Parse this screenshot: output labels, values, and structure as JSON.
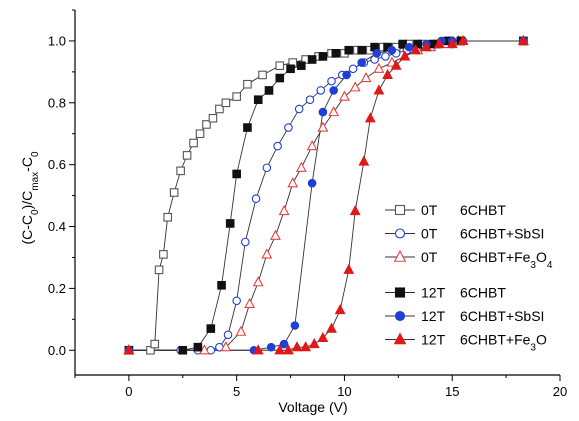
{
  "chart_data": {
    "type": "scatter",
    "title": "",
    "xlabel": "Voltage (V)",
    "ylabel_parts": [
      "(C-C",
      "0",
      ")/C",
      "max",
      "-C",
      "0"
    ],
    "xlim": [
      -2.5,
      20
    ],
    "ylim": [
      -0.08,
      1.1
    ],
    "xticks": [
      0,
      5,
      10,
      15,
      20
    ],
    "yticks": [
      0.0,
      0.2,
      0.4,
      0.6,
      0.8,
      1.0
    ],
    "xtick_labels": [
      "0",
      "5",
      "10",
      "15",
      "20"
    ],
    "ytick_labels": [
      "0.0",
      "0.2",
      "0.4",
      "0.6",
      "0.8",
      "1.0"
    ],
    "grid": false,
    "legend_position": "right",
    "series": [
      {
        "field": "0T",
        "sample_parts": [
          "6CHBT"
        ],
        "marker": "square",
        "filled": false,
        "color": "#555555",
        "x": [
          0,
          1.0,
          1.2,
          1.4,
          1.6,
          1.8,
          2.1,
          2.4,
          2.7,
          3.0,
          3.3,
          3.6,
          3.9,
          4.2,
          4.5,
          5.0,
          5.5,
          6.2,
          7.0,
          7.6,
          8.2,
          8.8,
          9.4,
          10.0,
          10.6,
          11.2,
          11.8,
          12.4,
          13.0,
          13.6,
          14.3,
          14.9,
          15.4,
          18.3
        ],
        "y": [
          0.0,
          0.0,
          0.02,
          0.26,
          0.31,
          0.43,
          0.51,
          0.58,
          0.63,
          0.67,
          0.7,
          0.73,
          0.75,
          0.78,
          0.8,
          0.82,
          0.86,
          0.89,
          0.92,
          0.93,
          0.94,
          0.95,
          0.96,
          0.96,
          0.97,
          0.97,
          0.98,
          0.98,
          0.99,
          0.99,
          0.99,
          1.0,
          1.0,
          1.0
        ]
      },
      {
        "field": "0T",
        "sample_parts": [
          "6CHBT+SbSI"
        ],
        "marker": "circle",
        "filled": false,
        "color": "#1f3fd6",
        "x": [
          0,
          2.4,
          3.2,
          3.8,
          4.2,
          4.6,
          5.0,
          5.4,
          5.9,
          6.4,
          6.9,
          7.4,
          7.9,
          8.4,
          8.9,
          9.4,
          9.9,
          10.4,
          10.9,
          11.4,
          11.9,
          12.4,
          12.9,
          13.4,
          13.9,
          14.4,
          15.0,
          15.5,
          18.3
        ],
        "y": [
          0.0,
          0.0,
          0.0,
          0.0,
          0.01,
          0.05,
          0.16,
          0.35,
          0.49,
          0.59,
          0.66,
          0.72,
          0.78,
          0.81,
          0.84,
          0.87,
          0.89,
          0.91,
          0.93,
          0.94,
          0.95,
          0.96,
          0.97,
          0.97,
          0.98,
          0.99,
          0.99,
          1.0,
          1.0
        ]
      },
      {
        "field": "0T",
        "sample_parts": [
          "6CHBT+Fe",
          "3",
          "O",
          "4"
        ],
        "marker": "triangle",
        "filled": false,
        "color": "#e84040",
        "x": [
          0,
          3.5,
          4.5,
          5.2,
          5.6,
          6.0,
          6.4,
          6.8,
          7.2,
          7.6,
          8.0,
          8.5,
          9.0,
          9.5,
          10.0,
          10.5,
          11.0,
          11.6,
          12.2,
          12.8,
          13.4,
          14.0,
          14.7,
          15.3,
          18.3
        ],
        "y": [
          0.0,
          0.0,
          0.01,
          0.06,
          0.15,
          0.22,
          0.31,
          0.37,
          0.45,
          0.54,
          0.59,
          0.66,
          0.72,
          0.77,
          0.82,
          0.85,
          0.88,
          0.91,
          0.93,
          0.95,
          0.97,
          0.98,
          0.99,
          1.0,
          1.0
        ]
      },
      {
        "field": "12T",
        "sample_parts": [
          "6CHBT"
        ],
        "marker": "square",
        "filled": true,
        "color": "#111111",
        "x": [
          0,
          2.5,
          3.2,
          3.8,
          4.3,
          4.7,
          5.0,
          5.5,
          6.0,
          6.5,
          7.0,
          7.5,
          8.0,
          8.5,
          9.0,
          9.6,
          10.2,
          10.8,
          11.4,
          12.0,
          12.7,
          13.4,
          14.1,
          14.8,
          15.4,
          18.3
        ],
        "y": [
          0.0,
          0.0,
          0.01,
          0.07,
          0.21,
          0.41,
          0.57,
          0.72,
          0.81,
          0.84,
          0.88,
          0.91,
          0.92,
          0.94,
          0.95,
          0.96,
          0.97,
          0.97,
          0.98,
          0.98,
          0.99,
          0.99,
          0.99,
          1.0,
          1.0,
          1.0
        ]
      },
      {
        "field": "12T",
        "sample_parts": [
          "6CHBT+SbSI"
        ],
        "marker": "circle",
        "filled": true,
        "color": "#1f3fd6",
        "x": [
          0,
          5.8,
          6.6,
          7.2,
          7.7,
          8.5,
          9.0,
          9.5,
          10.1,
          10.8,
          11.5,
          12.2,
          13.0,
          13.8,
          14.5,
          15.0,
          18.3
        ],
        "y": [
          0.0,
          0.0,
          0.01,
          0.02,
          0.08,
          0.54,
          0.77,
          0.84,
          0.89,
          0.93,
          0.96,
          0.97,
          0.98,
          0.99,
          1.0,
          1.0,
          1.0
        ]
      },
      {
        "field": "12T",
        "sample_parts": [
          "6CHBT+Fe",
          "3",
          "O"
        ],
        "marker": "triangle",
        "filled": true,
        "color": "#e01818",
        "x": [
          0,
          6.0,
          7.0,
          7.4,
          7.8,
          8.2,
          8.6,
          9.0,
          9.4,
          9.8,
          10.2,
          10.5,
          10.9,
          11.2,
          11.6,
          12.0,
          12.4,
          12.8,
          13.3,
          13.8,
          14.4,
          15.0,
          15.5,
          18.3
        ],
        "y": [
          0.0,
          0.0,
          0.0,
          0.0,
          0.01,
          0.01,
          0.02,
          0.04,
          0.07,
          0.13,
          0.26,
          0.45,
          0.61,
          0.75,
          0.84,
          0.89,
          0.92,
          0.95,
          0.97,
          0.98,
          0.99,
          0.99,
          1.0,
          1.0
        ]
      }
    ]
  }
}
